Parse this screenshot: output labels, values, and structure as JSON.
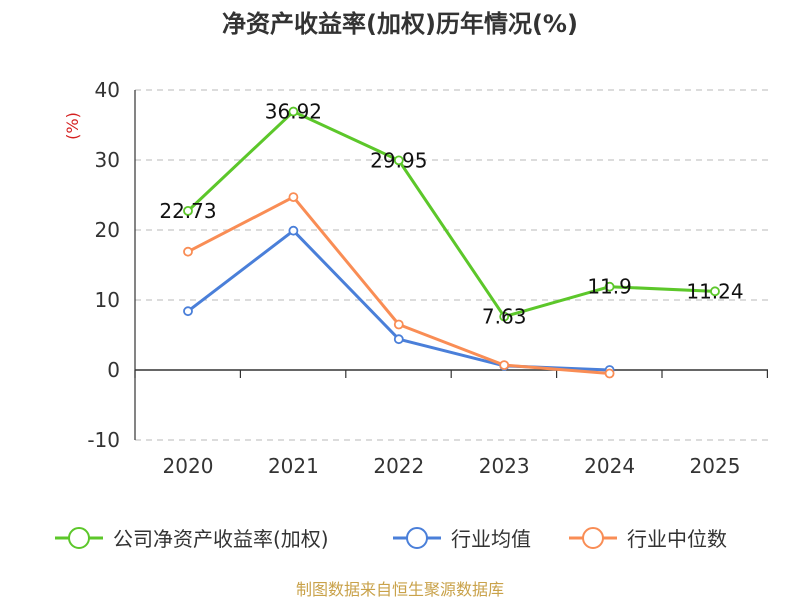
{
  "chart_data": {
    "type": "line",
    "title": "净资产收益率(加权)历年情况(%)",
    "unit_label": "(%)",
    "categories": [
      "2020",
      "2021",
      "2022",
      "2023",
      "2024",
      "2025"
    ],
    "ylim": [
      -10,
      40
    ],
    "yticks": [
      40,
      30,
      20,
      10,
      0,
      -10
    ],
    "ytick_labels": [
      "40",
      "30",
      "20",
      "10",
      "0",
      "-10"
    ],
    "grid": true,
    "legend_position": "bottom",
    "series": [
      {
        "name": "公司净资产收益率(加权)",
        "color": "#5cc72a",
        "values": [
          22.73,
          36.92,
          29.95,
          7.63,
          11.9,
          11.24
        ],
        "labels": [
          "22.73",
          "36.92",
          "29.95",
          "7.63",
          "11.9",
          "11.24"
        ]
      },
      {
        "name": "行业均值",
        "color": "#4a7fd9",
        "values": [
          8.4,
          19.9,
          4.4,
          0.6,
          0.0,
          null
        ]
      },
      {
        "name": "行业中位数",
        "color": "#f98d55",
        "values": [
          16.9,
          24.7,
          6.5,
          0.7,
          -0.5,
          null
        ]
      }
    ]
  },
  "footer": {
    "source_text": "制图数据来自恒生聚源数据库",
    "source_color": "#c9a24a"
  },
  "unit_color": "#d42020"
}
